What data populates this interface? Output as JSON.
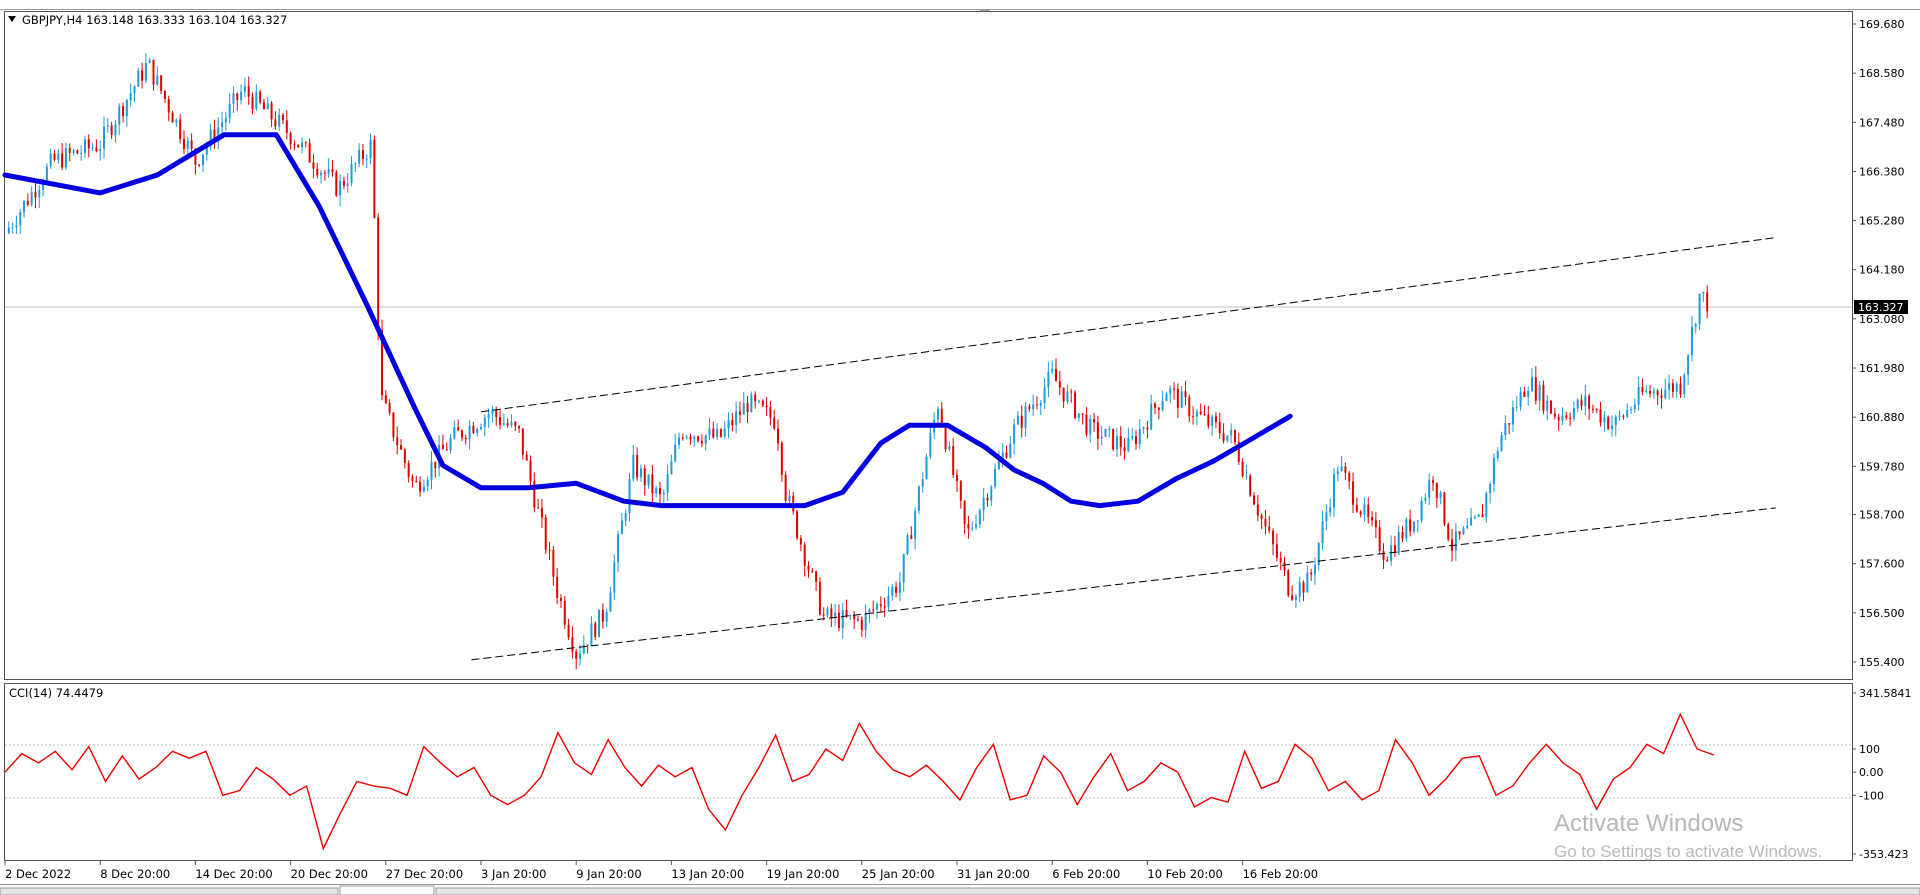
{
  "window": {
    "symbol_header": "GBPJPY,H4",
    "ohlc": "163.148 163.333 163.104 163.327",
    "menu_arrow": "triangle-down-icon"
  },
  "colors": {
    "bull": "#1e9bd7",
    "bear": "#e00000",
    "ma": "#0000e0",
    "cci": "#ee0000",
    "bg": "#ffffff",
    "grid": "#bfbfbf"
  },
  "price_axis": {
    "ticks": [
      "169.680",
      "168.580",
      "167.480",
      "166.380",
      "165.280",
      "164.180",
      "163.080",
      "161.980",
      "160.880",
      "159.780",
      "158.700",
      "157.600",
      "156.500",
      "155.400"
    ],
    "current_price_label": "163.327"
  },
  "cci_panel": {
    "title": "CCI(14) 74.4479",
    "ticks": [
      "341.5841",
      "100",
      "0.00",
      "-100",
      "-353.423"
    ]
  },
  "time_axis": {
    "labels": [
      "2 Dec 2022",
      "8 Dec 20:00",
      "14 Dec 20:00",
      "20 Dec 20:00",
      "27 Dec 20:00",
      "3 Jan 20:00",
      "9 Jan 20:00",
      "13 Jan 20:00",
      "19 Jan 20:00",
      "25 Jan 20:00",
      "31 Jan 20:00",
      "6 Feb 20:00",
      "10 Feb 20:00",
      "16 Feb 20:00"
    ]
  },
  "watermark": {
    "title": "Activate Windows",
    "subtitle": "Go to Settings to activate Windows."
  },
  "chart_data": [
    {
      "type": "candlestick",
      "title": "GBPJPY,H4",
      "ylim": [
        155.4,
        169.68
      ],
      "x": [
        "2 Dec 2022",
        "8 Dec 20:00",
        "14 Dec 20:00",
        "20 Dec 20:00",
        "27 Dec 20:00",
        "3 Jan 20:00",
        "9 Jan 20:00",
        "13 Jan 20:00",
        "19 Jan 20:00",
        "25 Jan 20:00",
        "31 Jan 20:00",
        "6 Feb 20:00",
        "10 Feb 20:00",
        "16 Feb 20:00"
      ],
      "close_path": [
        [
          0,
          165.0
        ],
        [
          0.5,
          166.6
        ],
        [
          1,
          167.0
        ],
        [
          1.5,
          168.8
        ],
        [
          2,
          166.6
        ],
        [
          2.5,
          168.2
        ],
        [
          3,
          167.2
        ],
        [
          3.5,
          166.0
        ],
        [
          3.85,
          167.0
        ],
        [
          3.95,
          161.3
        ],
        [
          4.3,
          159.3
        ],
        [
          4.7,
          160.4
        ],
        [
          5.1,
          161.0
        ],
        [
          5.4,
          160.5
        ],
        [
          5.8,
          157.0
        ],
        [
          6.0,
          155.6
        ],
        [
          6.3,
          156.5
        ],
        [
          6.6,
          159.8
        ],
        [
          6.9,
          159.0
        ],
        [
          7.1,
          160.6
        ],
        [
          7.5,
          160.4
        ],
        [
          7.8,
          161.2
        ],
        [
          8.1,
          160.8
        ],
        [
          8.2,
          159.2
        ],
        [
          8.6,
          156.4
        ],
        [
          9.0,
          156.3
        ],
        [
          9.4,
          157.2
        ],
        [
          9.8,
          161.2
        ],
        [
          10.1,
          158.2
        ],
        [
          10.6,
          160.6
        ],
        [
          11.0,
          161.8
        ],
        [
          11.4,
          160.6
        ],
        [
          11.8,
          160.2
        ],
        [
          12.2,
          161.5
        ],
        [
          12.6,
          160.8
        ],
        [
          12.9,
          160.4
        ],
        [
          13.2,
          158.6
        ],
        [
          13.5,
          157.0
        ],
        [
          13.7,
          157.2
        ],
        [
          14.0,
          159.8
        ],
        [
          14.5,
          157.8
        ],
        [
          14.8,
          158.6
        ],
        [
          15.0,
          159.6
        ],
        [
          15.2,
          158.0
        ],
        [
          15.5,
          158.6
        ],
        [
          15.7,
          160.4
        ],
        [
          16.0,
          161.7
        ],
        [
          16.3,
          160.9
        ],
        [
          16.6,
          161.2
        ],
        [
          16.9,
          160.7
        ],
        [
          17.2,
          161.4
        ],
        [
          17.6,
          161.6
        ],
        [
          17.8,
          163.6
        ],
        [
          17.9,
          163.4
        ]
      ],
      "moving_average": [
        [
          0,
          166.3
        ],
        [
          1,
          165.9
        ],
        [
          1.6,
          166.3
        ],
        [
          2.3,
          167.2
        ],
        [
          2.85,
          167.2
        ],
        [
          3.3,
          165.6
        ],
        [
          3.8,
          163.4
        ],
        [
          4.3,
          161.1
        ],
        [
          4.6,
          159.8
        ],
        [
          5.0,
          159.3
        ],
        [
          5.5,
          159.3
        ],
        [
          6.0,
          159.4
        ],
        [
          6.5,
          159.0
        ],
        [
          6.9,
          158.9
        ],
        [
          7.5,
          158.9
        ],
        [
          8.0,
          158.9
        ],
        [
          8.4,
          158.9
        ],
        [
          8.8,
          159.2
        ],
        [
          9.2,
          160.3
        ],
        [
          9.5,
          160.7
        ],
        [
          9.9,
          160.7
        ],
        [
          10.3,
          160.2
        ],
        [
          10.6,
          159.7
        ],
        [
          10.9,
          159.4
        ],
        [
          11.2,
          159.0
        ],
        [
          11.5,
          158.9
        ],
        [
          11.9,
          159.0
        ],
        [
          12.3,
          159.5
        ],
        [
          12.7,
          159.9
        ],
        [
          13.1,
          160.4
        ],
        [
          13.5,
          160.9
        ]
      ],
      "trendlines": [
        {
          "from": [
            5.0,
            161.0
          ],
          "to": [
            18.6,
            164.9
          ],
          "style": "dashed"
        },
        {
          "from": [
            4.9,
            155.45
          ],
          "to": [
            18.6,
            158.85
          ],
          "style": "dashed"
        }
      ],
      "current_price": 163.327
    },
    {
      "type": "line",
      "title": "CCI(14) 74.4479",
      "ylim": [
        -353.423,
        341.5841
      ],
      "reference_lines": [
        100,
        -100
      ],
      "series": [
        {
          "name": "CCI(14)",
          "values": [
            0,
            80,
            40,
            90,
            10,
            110,
            -40,
            70,
            -30,
            20,
            90,
            60,
            90,
            -100,
            -80,
            20,
            -30,
            -100,
            -60,
            -330,
            -180,
            -40,
            -60,
            -70,
            -100,
            110,
            40,
            -20,
            20,
            -100,
            -140,
            -100,
            -20,
            170,
            40,
            -10,
            140,
            20,
            -60,
            30,
            -20,
            20,
            -160,
            -250,
            -100,
            20,
            160,
            -40,
            -10,
            100,
            50,
            210,
            90,
            10,
            -20,
            30,
            -40,
            -120,
            20,
            120,
            -120,
            -100,
            70,
            0,
            -140,
            -20,
            80,
            -80,
            -40,
            40,
            0,
            -150,
            -110,
            -130,
            90,
            -70,
            -40,
            120,
            60,
            -80,
            -40,
            -120,
            -80,
            140,
            40,
            -100,
            -30,
            60,
            70,
            -100,
            -60,
            40,
            120,
            40,
            -10,
            -160,
            -30,
            20,
            120,
            80,
            250,
            100,
            74
          ]
        }
      ]
    }
  ]
}
